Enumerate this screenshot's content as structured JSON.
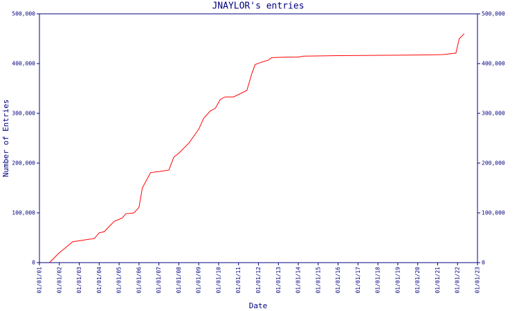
{
  "chart_data": {
    "type": "line",
    "title": "JNAYLOR's entries",
    "x_label": "Date",
    "y_label": "Number of Entries",
    "color": "#ff0000",
    "x": [
      "2001-07",
      "2002-01",
      "2002-04",
      "2002-09",
      "2003-01",
      "2003-07",
      "2003-10",
      "2004-01",
      "2004-04",
      "2004-10",
      "2005-01",
      "2005-03",
      "2005-05",
      "2005-10",
      "2006-01",
      "2006-03",
      "2006-08",
      "2007-01",
      "2007-07",
      "2007-10",
      "2008-01",
      "2008-07",
      "2009-01",
      "2009-04",
      "2009-08",
      "2009-11",
      "2010-02",
      "2010-05",
      "2010-10",
      "2011-06",
      "2011-09",
      "2011-11",
      "2012-03",
      "2012-07",
      "2012-09",
      "2013-06",
      "2014-01",
      "2014-04",
      "2016-01",
      "2019-06",
      "2021-04",
      "2021-12",
      "2022-02",
      "2022-05"
    ],
    "values": [
      0,
      20000,
      28000,
      42000,
      44000,
      47000,
      48000,
      60000,
      62000,
      83000,
      87000,
      90000,
      98000,
      100000,
      111000,
      150000,
      181000,
      183000,
      186000,
      212000,
      220000,
      240000,
      268000,
      290000,
      305000,
      310000,
      328000,
      333000,
      333000,
      346000,
      380000,
      398000,
      403000,
      407000,
      412000,
      413000,
      413000,
      415000,
      416000,
      417000,
      418000,
      421000,
      450000,
      460000
    ],
    "xlim": [
      "2001-01",
      "2023-01"
    ],
    "xticks": [
      {
        "value": "2001-01",
        "label": "01/01/01"
      },
      {
        "value": "2002-01",
        "label": "01/01/02"
      },
      {
        "value": "2003-01",
        "label": "01/01/03"
      },
      {
        "value": "2004-01",
        "label": "01/01/04"
      },
      {
        "value": "2005-01",
        "label": "01/01/05"
      },
      {
        "value": "2006-01",
        "label": "01/01/06"
      },
      {
        "value": "2007-01",
        "label": "01/01/07"
      },
      {
        "value": "2008-01",
        "label": "01/01/08"
      },
      {
        "value": "2009-01",
        "label": "01/01/09"
      },
      {
        "value": "2010-01",
        "label": "01/01/10"
      },
      {
        "value": "2011-01",
        "label": "01/01/11"
      },
      {
        "value": "2012-01",
        "label": "01/01/12"
      },
      {
        "value": "2013-01",
        "label": "01/01/13"
      },
      {
        "value": "2014-01",
        "label": "01/01/14"
      },
      {
        "value": "2015-01",
        "label": "01/01/15"
      },
      {
        "value": "2016-01",
        "label": "01/01/16"
      },
      {
        "value": "2017-01",
        "label": "01/01/17"
      },
      {
        "value": "2018-01",
        "label": "01/01/18"
      },
      {
        "value": "2019-01",
        "label": "01/01/19"
      },
      {
        "value": "2020-01",
        "label": "01/01/20"
      },
      {
        "value": "2021-01",
        "label": "01/01/21"
      },
      {
        "value": "2022-01",
        "label": "01/01/22"
      },
      {
        "value": "2023-01",
        "label": "01/01/23"
      }
    ],
    "ylim": [
      0,
      500000
    ],
    "yticks": [
      0,
      {
        "value": 100000,
        "label": "100,000"
      },
      {
        "value": 200000,
        "label": "200,000"
      },
      {
        "value": 300000,
        "label": "300,000"
      },
      {
        "value": 400000,
        "label": "400,000"
      },
      {
        "value": 500000,
        "label": "500,000"
      }
    ]
  }
}
